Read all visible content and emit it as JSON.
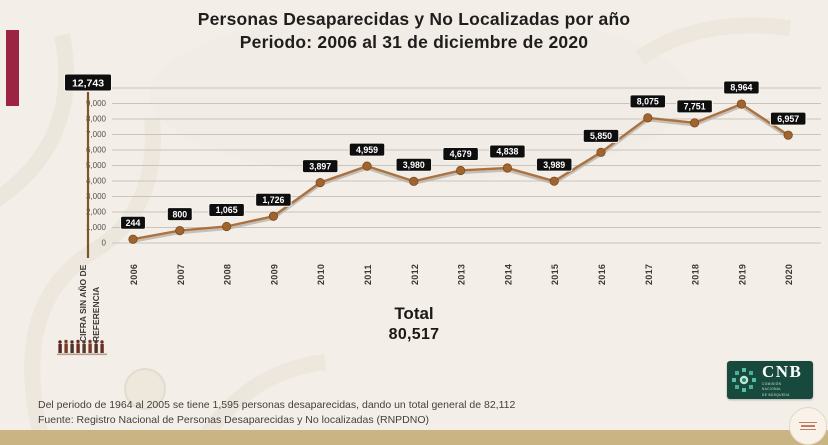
{
  "title": {
    "line1": "Personas Desaparecidas y No Localizadas por año",
    "line2": "Periodo: 2006 al 31 de diciembre de 2020"
  },
  "chart_data": {
    "type": "line",
    "categories": [
      "CIFRA SIN AÑO DE REFERENCIA",
      "2006",
      "2007",
      "2008",
      "2009",
      "2010",
      "2011",
      "2012",
      "2013",
      "2014",
      "2015",
      "2016",
      "2017",
      "2018",
      "2019",
      "2020"
    ],
    "category0_lines": [
      "CIFRA SIN AÑO DE",
      "REFERENCIA"
    ],
    "values": [
      12743,
      244,
      800,
      1065,
      1726,
      3897,
      4959,
      3980,
      4679,
      4838,
      3989,
      5850,
      8075,
      7751,
      8964,
      6957
    ],
    "point_labels": [
      "12,743",
      "244",
      "800",
      "1,065",
      "1,726",
      "3,897",
      "4,959",
      "3,980",
      "4,679",
      "4,838",
      "3,989",
      "5,850",
      "8,075",
      "7,751",
      "8,964",
      "6,957"
    ],
    "y_ticks": [
      "10,000",
      "9,000",
      "8,000",
      "7,000",
      "6,000",
      "5,000",
      "4,000",
      "3,000",
      "2,000",
      "1,000",
      "0"
    ],
    "ylim": [
      0,
      10000
    ],
    "grid": true,
    "legend": "none",
    "line_color": "#ab7240",
    "marker_color": "#a0642f",
    "label_bg": "#0e0e0e",
    "label_text_color": "#ffffff"
  },
  "totals": {
    "label": "Total",
    "value": "80,517"
  },
  "footer": {
    "line1": "Del periodo de 1964 al 2005 se tiene 1,595 personas desaparecidas, dando un total general de 82,112",
    "line2": "Fuente: Registro Nacional de Personas Desaparecidas y No localizadas (RNPDNO)"
  },
  "logo": {
    "text": "CNB",
    "subtext": [
      "COMISIÓN",
      "NACIONAL",
      "DE BÚSQUEDA"
    ]
  },
  "accent_colors": {
    "maroon_bar": "#9c2342",
    "bottom_bar": "#cab484",
    "logo_green": "#174a3c"
  }
}
